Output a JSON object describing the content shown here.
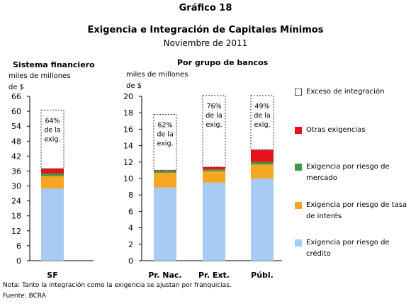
{
  "figure_number": "Gráfico 18",
  "title": "Exigencia e Integración de Capitales Mínimos",
  "subtitle": "Noviembre de 2011",
  "note": "Nota: Tanto la integración como la exigencia se ajustan por franquicias.",
  "source": "Fuente: BCRA",
  "colors": {
    "credito": "#a6ccf5",
    "tasa": "#f5a623",
    "mercado": "#3a9a48",
    "otras": "#e4141c",
    "exceso_border": "#333333"
  },
  "legend": [
    {
      "key": "exceso",
      "label": "Exceso de integración"
    },
    {
      "key": "otras",
      "label": "Otras exigencias"
    },
    {
      "key": "mercado",
      "label": "Exigencia por riesgo de mercado"
    },
    {
      "key": "tasa",
      "label": "Exigencia por riesgo de tasa de interés"
    },
    {
      "key": "credito",
      "label": "Exigencia por riesgo de crédito"
    }
  ],
  "chart_data": [
    {
      "type": "bar",
      "stacked": true,
      "title": "Sistema financiero",
      "ylabel": "miles de millones de $",
      "ylim": [
        0,
        66
      ],
      "yticks": [
        0,
        6,
        12,
        18,
        24,
        30,
        36,
        42,
        48,
        54,
        60,
        66
      ],
      "categories": [
        "SF"
      ],
      "series": [
        {
          "name": "Exigencia por riesgo de crédito",
          "key": "credito",
          "values": [
            29
          ]
        },
        {
          "name": "Exigencia por riesgo de tasa de interés",
          "key": "tasa",
          "values": [
            5
          ]
        },
        {
          "name": "Exigencia por riesgo de mercado",
          "key": "mercado",
          "values": [
            1
          ]
        },
        {
          "name": "Otras exigencias",
          "key": "otras",
          "values": [
            2
          ]
        },
        {
          "name": "Exceso de integración",
          "key": "exceso",
          "values": [
            23.5
          ]
        }
      ],
      "annotations": [
        {
          "category": "SF",
          "lines": [
            "64%",
            "de la",
            "exig."
          ]
        }
      ]
    },
    {
      "type": "bar",
      "stacked": true,
      "title": "Por grupo de bancos",
      "ylabel": "miles de millones de $",
      "ylim": [
        0,
        20
      ],
      "yticks": [
        0,
        2,
        4,
        6,
        8,
        10,
        12,
        14,
        16,
        18,
        20
      ],
      "categories": [
        "Pr. Nac.",
        "Pr. Ext.",
        "Públ."
      ],
      "series": [
        {
          "name": "Exigencia por riesgo de crédito",
          "key": "credito",
          "values": [
            8.9,
            9.5,
            10.0
          ]
        },
        {
          "name": "Exigencia por riesgo de tasa de interés",
          "key": "tasa",
          "values": [
            1.8,
            1.4,
            1.7
          ]
        },
        {
          "name": "Exigencia por riesgo de mercado",
          "key": "mercado",
          "values": [
            0.2,
            0.2,
            0.3
          ]
        },
        {
          "name": "Otras exigencias",
          "key": "otras",
          "values": [
            0.1,
            0.3,
            1.5
          ]
        },
        {
          "name": "Exceso de integración",
          "key": "exceso",
          "values": [
            6.8,
            8.7,
            6.6
          ]
        }
      ],
      "annotations": [
        {
          "category": "Pr. Nac.",
          "lines": [
            "62%",
            "de la",
            "exig."
          ]
        },
        {
          "category": "Pr. Ext.",
          "lines": [
            "76%",
            "de la",
            "exig."
          ]
        },
        {
          "category": "Públ.",
          "lines": [
            "49%",
            "de la",
            "exig."
          ]
        }
      ]
    }
  ]
}
